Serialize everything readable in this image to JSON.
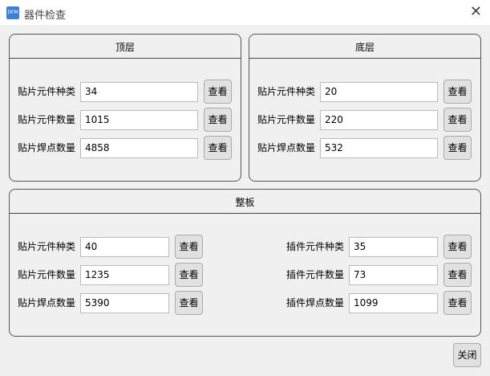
{
  "window": {
    "icon": "DFM",
    "title": "器件检查"
  },
  "panels": [
    {
      "title": "顶层",
      "rows": [
        {
          "label": "贴片元件种类",
          "value": 34,
          "button": "查看"
        },
        {
          "label": "贴片元件数量",
          "value": 1015,
          "button": "查看"
        },
        {
          "label": "贴片焊点数量",
          "value": 4858,
          "button": "查看"
        }
      ]
    },
    {
      "title": "底层",
      "rows": [
        {
          "label": "贴片元件种类",
          "value": 20,
          "button": "查看"
        },
        {
          "label": "贴片元件数量",
          "value": 220,
          "button": "查看"
        },
        {
          "label": "贴片焊点数量",
          "value": 532,
          "button": "查看"
        }
      ]
    }
  ],
  "board": {
    "title": "整板",
    "left": [
      {
        "label": "贴片元件种类",
        "value": 40,
        "button": "查看"
      },
      {
        "label": "贴片元件数量",
        "value": 1235,
        "button": "查看"
      },
      {
        "label": "贴片焊点数量",
        "value": 5390,
        "button": "查看"
      }
    ],
    "right": [
      {
        "label": "插件元件种类",
        "value": 35,
        "button": "查看"
      },
      {
        "label": "插件元件数量",
        "value": 73,
        "button": "查看"
      },
      {
        "label": "插件焊点数量",
        "value": 1099,
        "button": "查看"
      }
    ]
  },
  "close_button": "关闭"
}
